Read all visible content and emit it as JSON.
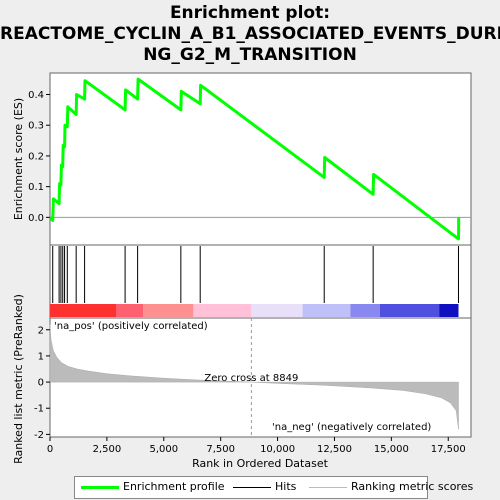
{
  "title_line1": "Enrichment plot:",
  "title_line2": "REACTOME_CYCLIN_A_B1_ASSOCIATED_EVENTS_DURI",
  "title_line3": "NG_G2_M_TRANSITION",
  "colors": {
    "enrichment": "#00ff00",
    "hits": "#000000",
    "ranking": "#bbbbbb",
    "pos_text": "#cc0000",
    "neg_text": "#0000cc"
  },
  "chart_data": [
    {
      "type": "line",
      "panel": "enrichment",
      "ylabel": "Enrichment score (ES)",
      "xlim": [
        0,
        18500
      ],
      "ylim": [
        -0.09,
        0.47
      ],
      "yticks": [
        "0.0",
        "0.1",
        "0.2",
        "0.3",
        "0.4"
      ],
      "ytick_values": [
        0.0,
        0.1,
        0.2,
        0.3,
        0.4
      ],
      "x": [
        0,
        120,
        150,
        400,
        420,
        480,
        500,
        560,
        580,
        640,
        660,
        760,
        780,
        1150,
        1170,
        1520,
        1540,
        3300,
        3320,
        3850,
        3870,
        5750,
        5770,
        6600,
        6620,
        12050,
        12070,
        14200,
        14220,
        17950,
        17960
      ],
      "y": [
        0.0,
        -0.01,
        0.06,
        0.045,
        0.11,
        0.105,
        0.17,
        0.165,
        0.235,
        0.23,
        0.3,
        0.295,
        0.36,
        0.335,
        0.4,
        0.385,
        0.445,
        0.35,
        0.415,
        0.385,
        0.45,
        0.35,
        0.41,
        0.37,
        0.43,
        0.13,
        0.195,
        0.075,
        0.14,
        -0.07,
        0.0
      ]
    },
    {
      "type": "hits",
      "panel": "hits",
      "x": [
        120,
        400,
        480,
        560,
        640,
        760,
        1150,
        1520,
        3300,
        3850,
        5750,
        6600,
        12050,
        14200,
        17950
      ]
    },
    {
      "type": "heatmap",
      "panel": "ranked-list-colorbar",
      "segments": [
        {
          "x0": 0,
          "x1": 2900,
          "color": "#ff3030"
        },
        {
          "x0": 2900,
          "x1": 4100,
          "color": "#ff6070"
        },
        {
          "x0": 4100,
          "x1": 6300,
          "color": "#ff9090"
        },
        {
          "x0": 6300,
          "x1": 8849,
          "color": "#ffc0d8"
        },
        {
          "x0": 8849,
          "x1": 11100,
          "color": "#e8e0f8"
        },
        {
          "x0": 11100,
          "x1": 13200,
          "color": "#c0c0f8"
        },
        {
          "x0": 13200,
          "x1": 14500,
          "color": "#8888f0"
        },
        {
          "x0": 14500,
          "x1": 17100,
          "color": "#5050e0"
        },
        {
          "x0": 17100,
          "x1": 17950,
          "color": "#1010c0"
        }
      ]
    },
    {
      "type": "area",
      "panel": "ranked-list",
      "xlabel": "Rank in Ordered Dataset",
      "ylabel": "Ranked list metric (PreRanked)",
      "xlim": [
        0,
        18500
      ],
      "ylim": [
        -2.1,
        2.45
      ],
      "xticks": [
        "0",
        "2,500",
        "5,000",
        "7,500",
        "10,000",
        "12,500",
        "15,000",
        "17,500"
      ],
      "xtick_values": [
        0,
        2500,
        5000,
        7500,
        10000,
        12500,
        15000,
        17500
      ],
      "yticks": [
        "-2",
        "-1",
        "0",
        "1",
        "2"
      ],
      "ytick_values": [
        -2,
        -1,
        0,
        1,
        2
      ],
      "x": [
        0,
        50,
        150,
        300,
        500,
        800,
        1200,
        1700,
        2500,
        3500,
        5000,
        6500,
        8000,
        8849,
        10000,
        12000,
        14000,
        15500,
        16500,
        17200,
        17600,
        17850,
        17950
      ],
      "y": [
        2.2,
        1.6,
        1.2,
        0.95,
        0.75,
        0.6,
        0.5,
        0.42,
        0.32,
        0.24,
        0.15,
        0.08,
        0.03,
        0.0,
        -0.05,
        -0.12,
        -0.22,
        -0.32,
        -0.45,
        -0.6,
        -0.8,
        -1.1,
        -1.8
      ],
      "zero_cross_label": "Zero cross at 8849",
      "zero_cross": 8849,
      "pos_label": "'na_pos' (positively correlated)",
      "neg_label": "'na_neg' (negatively correlated)"
    }
  ],
  "legend": {
    "enrichment_label": "Enrichment profile",
    "hits_label": "Hits",
    "ranking_label": "Ranking metric scores"
  }
}
